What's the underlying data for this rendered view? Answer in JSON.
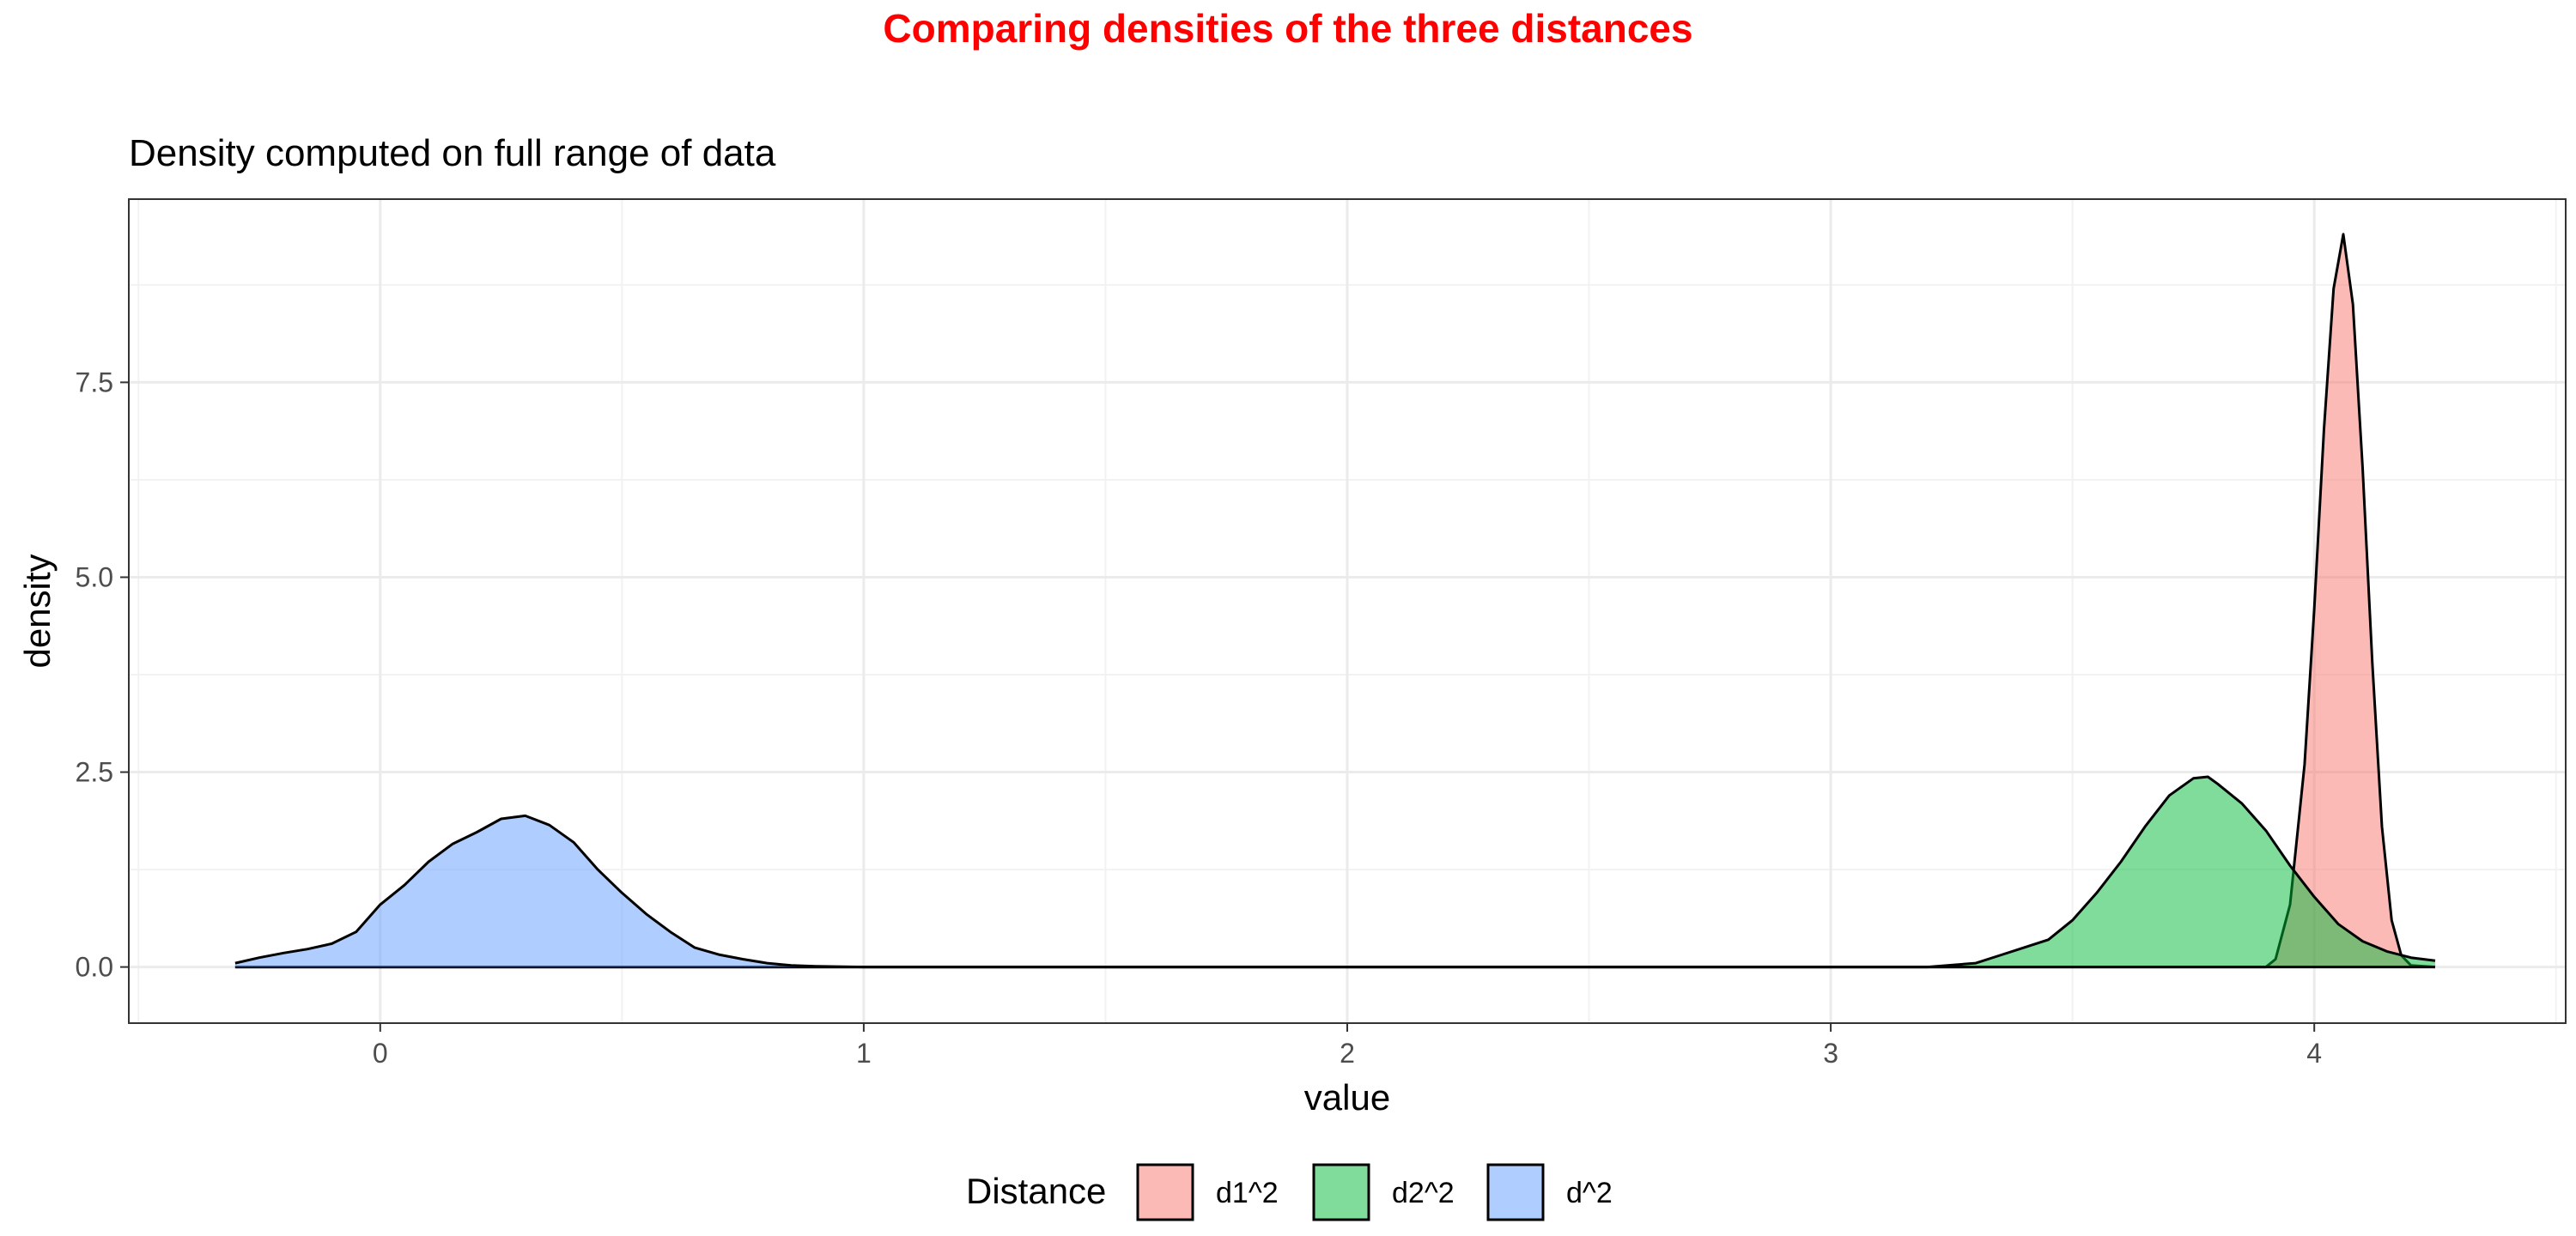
{
  "chart_data": {
    "type": "area",
    "title": "Comparing densities of the three distances",
    "title_color": "#FF0000",
    "subtitle": "Density computed on full range of data",
    "xlabel": "value",
    "ylabel": "density",
    "xlim": [
      -0.52,
      4.52
    ],
    "ylim": [
      -0.72,
      9.85
    ],
    "x_ticks": [
      0,
      1,
      2,
      3,
      4
    ],
    "x_tick_labels": [
      "0",
      "1",
      "2",
      "3",
      "4"
    ],
    "y_ticks": [
      0,
      2.5,
      5,
      7.5
    ],
    "y_tick_labels": [
      "0.0",
      "2.5",
      "5.0",
      "7.5"
    ],
    "grid": true,
    "legend": {
      "title": "Distance",
      "position": "bottom"
    },
    "series": [
      {
        "name": "d1^2",
        "color": "#F8766D",
        "x": [
          -0.3,
          3.6,
          3.9,
          3.92,
          3.95,
          3.98,
          4.0,
          4.02,
          4.04,
          4.06,
          4.08,
          4.1,
          4.12,
          4.14,
          4.16,
          4.18,
          4.2,
          4.25
        ],
        "y": [
          0,
          0,
          0,
          0.1,
          0.8,
          2.6,
          4.6,
          6.9,
          8.7,
          9.4,
          8.5,
          6.4,
          3.9,
          1.8,
          0.6,
          0.15,
          0.02,
          0
        ]
      },
      {
        "name": "d2^2",
        "color": "#00BA38",
        "x": [
          -0.3,
          3.2,
          3.3,
          3.35,
          3.4,
          3.45,
          3.5,
          3.55,
          3.6,
          3.65,
          3.7,
          3.75,
          3.78,
          3.8,
          3.85,
          3.9,
          3.95,
          4.0,
          4.05,
          4.1,
          4.15,
          4.2,
          4.25
        ],
        "y": [
          0,
          0,
          0.05,
          0.15,
          0.25,
          0.35,
          0.6,
          0.95,
          1.35,
          1.8,
          2.2,
          2.42,
          2.44,
          2.35,
          2.1,
          1.75,
          1.3,
          0.9,
          0.55,
          0.33,
          0.2,
          0.12,
          0.08
        ]
      },
      {
        "name": "d^2",
        "color": "#619CFF",
        "x": [
          -0.3,
          -0.25,
          -0.2,
          -0.15,
          -0.1,
          -0.05,
          0.0,
          0.05,
          0.1,
          0.15,
          0.2,
          0.25,
          0.3,
          0.35,
          0.4,
          0.45,
          0.5,
          0.55,
          0.6,
          0.65,
          0.7,
          0.75,
          0.8,
          0.85,
          0.9,
          1.0,
          4.25
        ],
        "y": [
          0.05,
          0.12,
          0.18,
          0.23,
          0.3,
          0.45,
          0.8,
          1.05,
          1.35,
          1.58,
          1.73,
          1.9,
          1.94,
          1.82,
          1.6,
          1.25,
          0.95,
          0.68,
          0.45,
          0.25,
          0.16,
          0.1,
          0.05,
          0.02,
          0.01,
          0,
          0
        ]
      }
    ]
  }
}
